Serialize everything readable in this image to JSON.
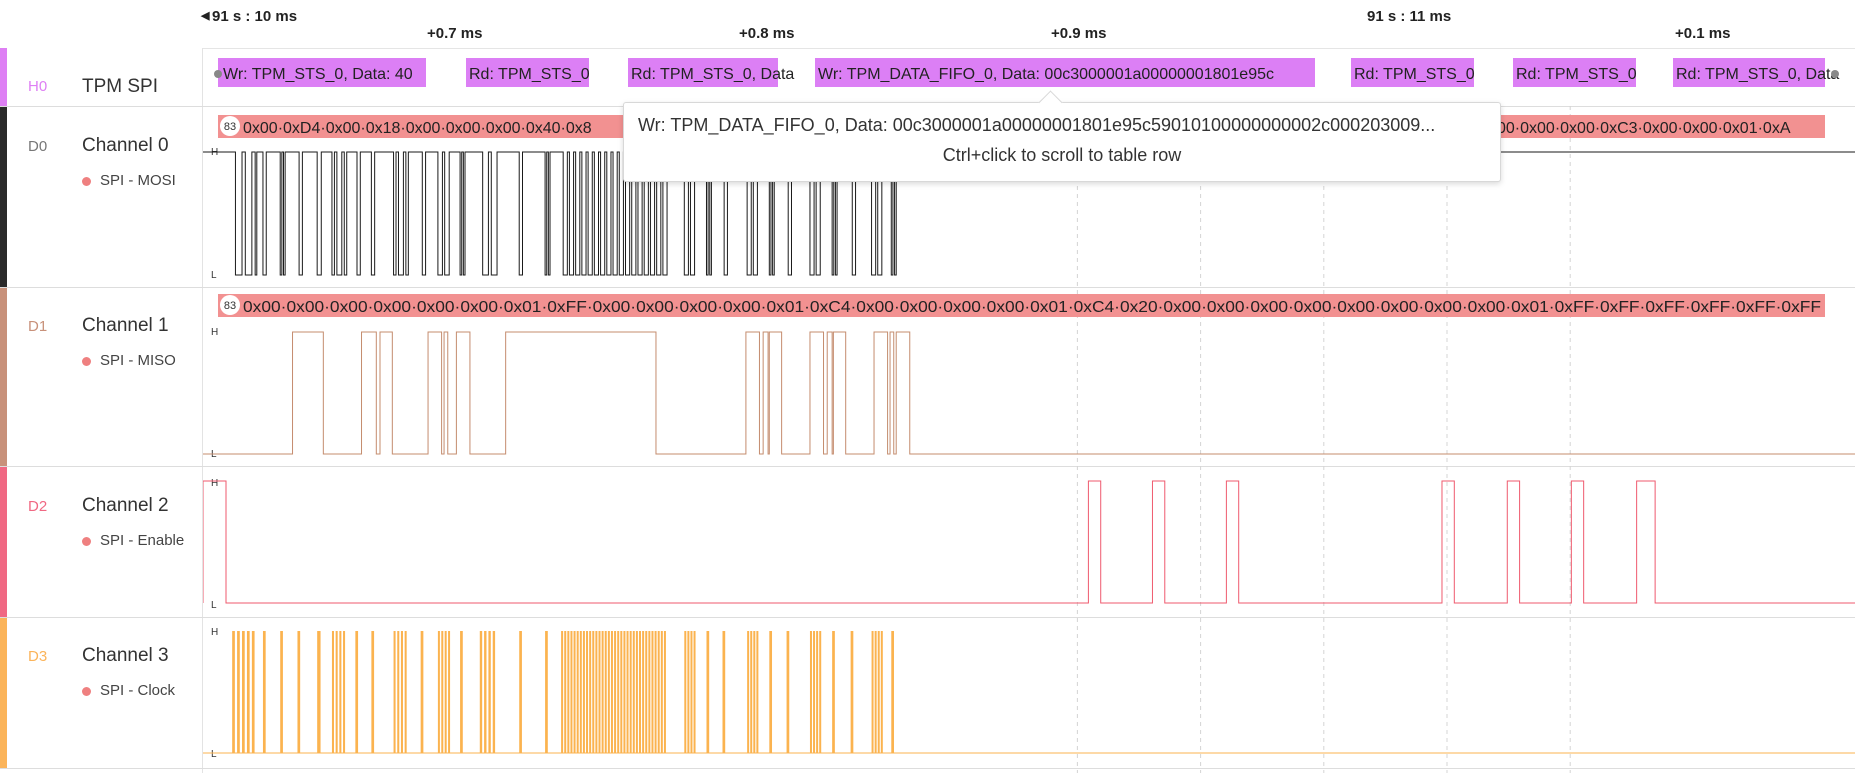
{
  "ruler": {
    "major_ticks": [
      {
        "label": "91 s : 10 ms",
        "t": 0.0
      },
      {
        "label": "91 s : 11 ms",
        "t": 1.0
      }
    ],
    "minor_ticks": [
      {
        "label": "+0.7 ms",
        "t": 0.7
      },
      {
        "label": "+0.8 ms",
        "t": 0.8
      },
      {
        "label": "+0.9 ms",
        "t": 0.9
      },
      {
        "label": "+0.1 ms",
        "t": 1.1
      }
    ]
  },
  "rows": [
    {
      "id": "H0",
      "name": "TPM SPI",
      "sub": "",
      "color": "#de7ff4"
    },
    {
      "id": "D0",
      "name": "Channel 0",
      "sub": "SPI - MOSI",
      "color": "#2a2a2a"
    },
    {
      "id": "D1",
      "name": "Channel 1",
      "sub": "SPI - MISO",
      "color": "#c8917a"
    },
    {
      "id": "D2",
      "name": "Channel 2",
      "sub": "SPI - Enable",
      "color": "#f06883"
    },
    {
      "id": "D3",
      "name": "Channel 3",
      "sub": "SPI - Clock",
      "color": "#fbb45a"
    }
  ],
  "analyzer_frames": [
    {
      "text": "Wr: TPM_STS_0, Data: 40"
    },
    {
      "text": "Rd: TPM_STS_0"
    },
    {
      "text": "Rd: TPM_STS_0, Data"
    },
    {
      "text": "Wr: TPM_DATA_FIFO_0, Data: 00c3000001a00000001801e95c"
    },
    {
      "text": "Rd: TPM_STS_0"
    },
    {
      "text": "Rd: TPM_STS_0"
    },
    {
      "text": "Rd: TPM_STS_0, Data"
    }
  ],
  "mosi_bytes": {
    "badge": "83",
    "text_left": "0x00·0xD4·0x00·0x18·0x00·0x00·0x00·0x40·0x8",
    "text_right": "00·0x00·0x00·0xC3·0x00·0x00·0x01·0xA"
  },
  "miso_bytes": {
    "badge": "83",
    "text": "0x00·0x00·0x00·0x00·0x00·0x00·0x01·0xFF·0x00·0x00·0x00·0x00·0x01·0xC4·0x00·0x00·0x00·0x00·0x01·0xC4·0x20·0x00·0x00·0x00·0x00·0x00·0x00·0x00·0x00·0x01·0xFF·0xFF·0xFF·0xFF·0xFF·0xFF"
  },
  "level_labels": {
    "high": "H",
    "low": "L"
  },
  "tooltip": {
    "line1": "Wr: TPM_DATA_FIFO_0, Data: 00c3000001a00000001801e95c59010100000000002c000203009...",
    "line2": "Ctrl+click to scroll to table row"
  },
  "colors": {
    "frame_fill": "#dc7ff5",
    "byte_fill": "#f29191",
    "mosi_trace": "#1a1a1a",
    "miso_trace": "#c48c6e",
    "enable_trace": "#ef5a6e",
    "clock_trace": "#fbb34f"
  },
  "signals": {
    "enable_high": [
      [
        -0.036,
        0.0
      ],
      [
        0.7,
        0.71
      ],
      [
        0.752,
        0.762
      ],
      [
        0.812,
        0.822
      ],
      [
        0.987,
        0.997
      ],
      [
        1.04,
        1.05
      ],
      [
        1.092,
        1.102
      ],
      [
        1.145,
        1.16
      ]
    ],
    "miso_high": [
      [
        0.054,
        0.079
      ],
      [
        0.11,
        0.122
      ],
      [
        0.125,
        0.135
      ],
      [
        0.164,
        0.175
      ],
      [
        0.177,
        0.18
      ],
      [
        0.187,
        0.198
      ],
      [
        0.227,
        0.349
      ],
      [
        0.422,
        0.433
      ],
      [
        0.436,
        0.44
      ],
      [
        0.441,
        0.451
      ],
      [
        0.474,
        0.485
      ],
      [
        0.488,
        0.492
      ],
      [
        0.493,
        0.503
      ],
      [
        0.526,
        0.537
      ],
      [
        0.539,
        0.542
      ],
      [
        0.544,
        0.555
      ]
    ],
    "clock_bursts": [
      [
        0.005,
        0.025,
        5
      ],
      [
        0.03,
        0.034,
        1
      ],
      [
        0.044,
        0.048,
        1
      ],
      [
        0.058,
        0.062,
        1
      ],
      [
        0.074,
        0.079,
        1
      ],
      [
        0.086,
        0.098,
        4
      ],
      [
        0.105,
        0.109,
        1
      ],
      [
        0.118,
        0.122,
        1
      ],
      [
        0.136,
        0.148,
        4
      ],
      [
        0.158,
        0.162,
        1
      ],
      [
        0.172,
        0.183,
        4
      ],
      [
        0.19,
        0.194,
        1
      ],
      [
        0.206,
        0.22,
        4
      ],
      [
        0.238,
        0.242,
        1
      ],
      [
        0.259,
        0.263,
        1
      ],
      [
        0.272,
        0.358,
        34
      ],
      [
        0.372,
        0.382,
        4
      ],
      [
        0.39,
        0.394,
        1
      ],
      [
        0.403,
        0.407,
        1
      ],
      [
        0.423,
        0.433,
        4
      ],
      [
        0.441,
        0.445,
        1
      ],
      [
        0.455,
        0.459,
        1
      ],
      [
        0.474,
        0.484,
        4
      ],
      [
        0.492,
        0.496,
        1
      ],
      [
        0.507,
        0.511,
        1
      ],
      [
        0.524,
        0.534,
        4
      ],
      [
        0.54,
        0.544,
        1
      ]
    ]
  }
}
